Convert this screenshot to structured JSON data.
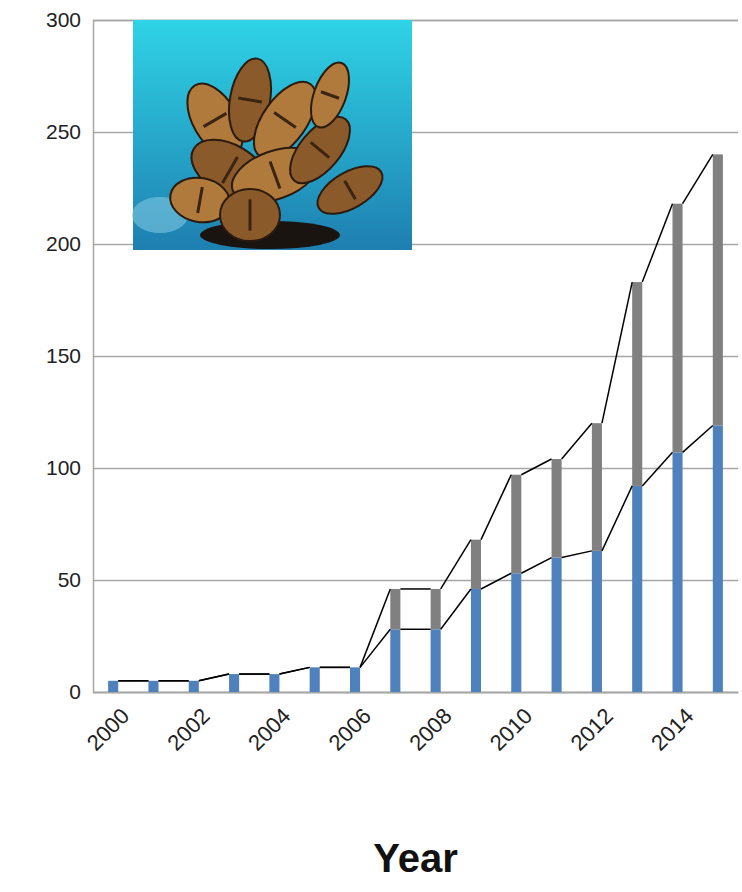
{
  "chart_data": {
    "type": "bar",
    "stacked": true,
    "x_label": "Year",
    "categories": [
      "2000",
      null,
      "2002",
      null,
      "2004",
      null,
      "2006",
      null,
      "2008",
      null,
      "2010",
      null,
      "2012",
      null,
      "2014",
      null
    ],
    "series": [
      {
        "color": "#4f81bd",
        "values": [
          5,
          5,
          5,
          8,
          8,
          11,
          11,
          28,
          28,
          46,
          53,
          60,
          63,
          92,
          107,
          119
        ]
      },
      {
        "color": "#808080",
        "values": [
          0,
          0,
          0,
          0,
          0,
          0,
          0,
          18,
          18,
          22,
          44,
          44,
          57,
          91,
          111,
          121
        ]
      }
    ],
    "ylim": [
      0,
      300
    ],
    "yticks": [
      0,
      50,
      100,
      150,
      200,
      250,
      300
    ],
    "grid": true
  }
}
